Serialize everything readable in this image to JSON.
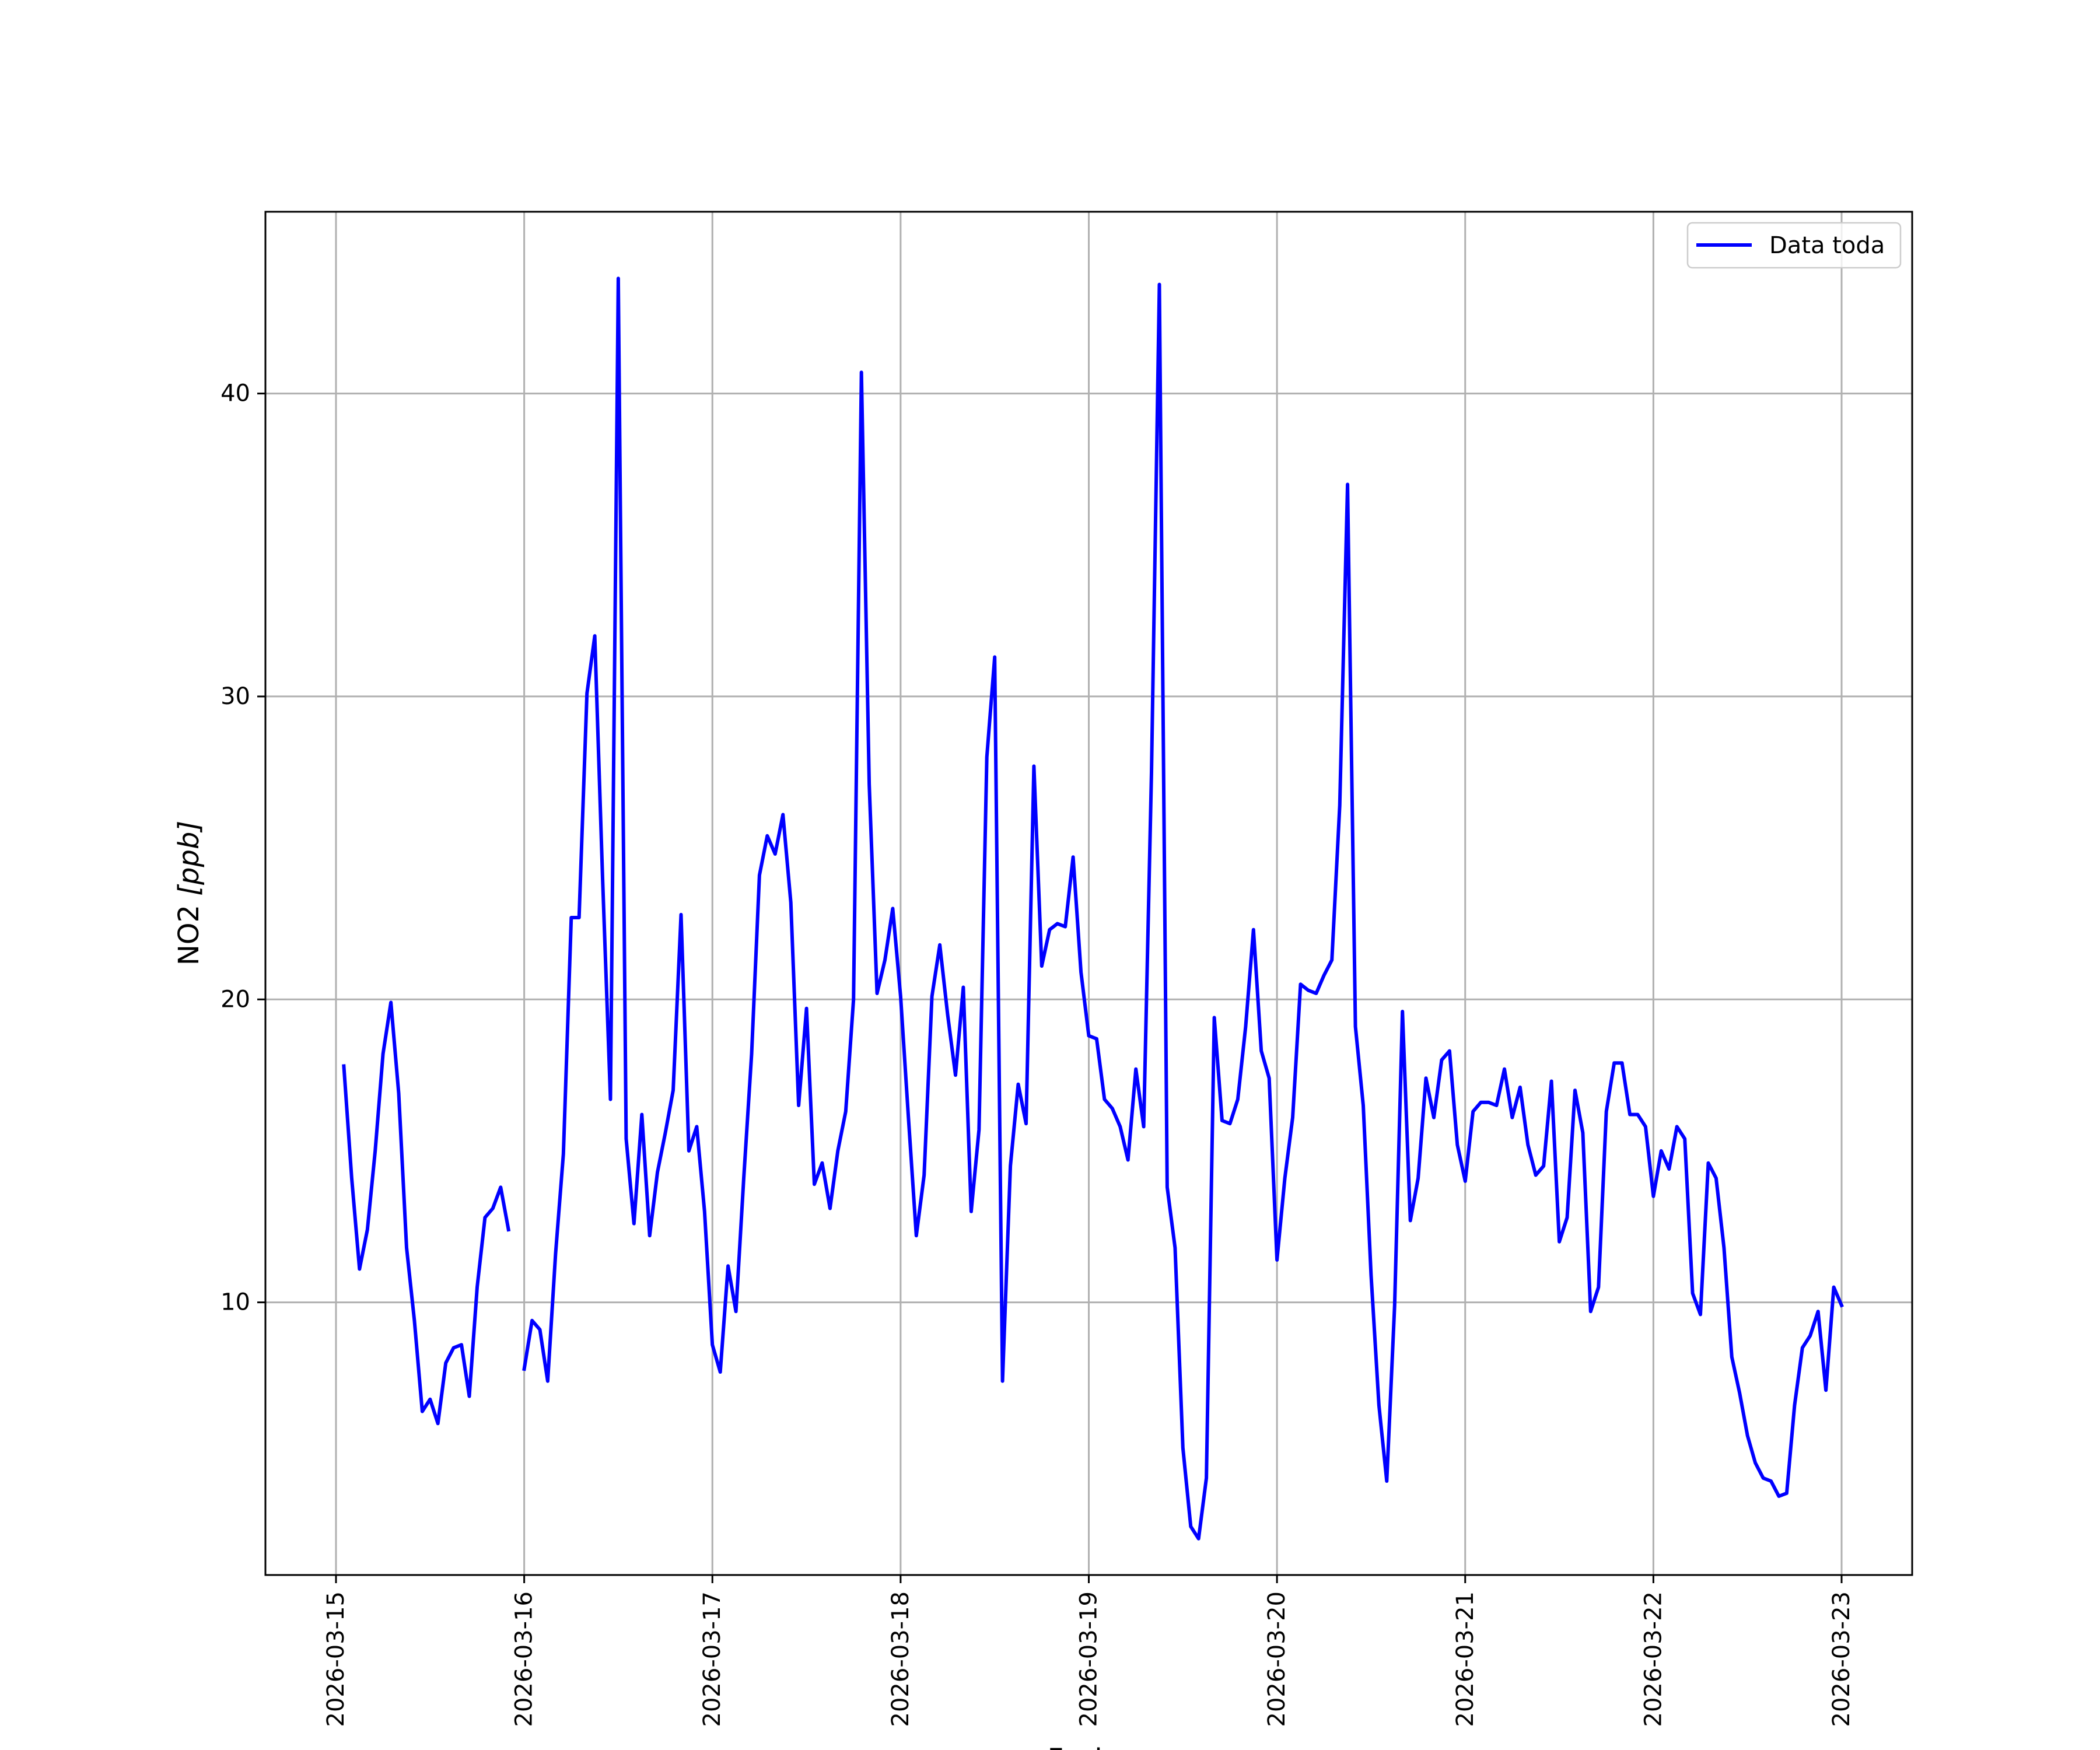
{
  "chart_data": {
    "type": "line",
    "title": "",
    "xlabel": "Fecha",
    "ylabel": "NO2 [ppb]",
    "ylabel_main": "NO2 ",
    "ylabel_unit": "[ppb]",
    "xlim": [
      "2026-03-14 15:00",
      "2026-03-23 09:00"
    ],
    "ylim": [
      1,
      46
    ],
    "xticks": [
      "2026-03-15",
      "2026-03-16",
      "2026-03-17",
      "2026-03-18",
      "2026-03-19",
      "2026-03-20",
      "2026-03-21",
      "2026-03-22",
      "2026-03-23"
    ],
    "yticks": [
      10,
      20,
      30,
      40
    ],
    "grid": true,
    "legend_position": "upper right",
    "series": [
      {
        "name": "Data toda",
        "color": "#0000ff",
        "x": [
          "2026-03-15 01:00",
          "2026-03-15 02:00",
          "2026-03-15 03:00",
          "2026-03-15 04:00",
          "2026-03-15 05:00",
          "2026-03-15 06:00",
          "2026-03-15 07:00",
          "2026-03-15 08:00",
          "2026-03-15 09:00",
          "2026-03-15 10:00",
          "2026-03-15 11:00",
          "2026-03-15 12:00",
          "2026-03-15 13:00",
          "2026-03-15 14:00",
          "2026-03-15 15:00",
          "2026-03-15 16:00",
          "2026-03-15 17:00",
          "2026-03-15 18:00",
          "2026-03-15 19:00",
          "2026-03-15 20:00",
          "2026-03-15 21:00",
          "2026-03-15 22:00",
          null,
          "2026-03-16 00:00",
          "2026-03-16 01:00",
          "2026-03-16 02:00",
          "2026-03-16 03:00",
          "2026-03-16 04:00",
          "2026-03-16 05:00",
          "2026-03-16 06:00",
          "2026-03-16 07:00",
          "2026-03-16 08:00",
          "2026-03-16 09:00",
          "2026-03-16 10:00",
          "2026-03-16 11:00",
          "2026-03-16 12:00",
          "2026-03-16 13:00",
          "2026-03-16 14:00",
          "2026-03-16 15:00",
          "2026-03-16 16:00",
          "2026-03-16 17:00",
          "2026-03-16 18:00",
          "2026-03-16 19:00",
          "2026-03-16 20:00",
          "2026-03-16 21:00",
          "2026-03-16 22:00",
          "2026-03-16 23:00",
          "2026-03-17 00:00",
          "2026-03-17 01:00",
          "2026-03-17 02:00",
          "2026-03-17 03:00",
          "2026-03-17 04:00",
          "2026-03-17 05:00",
          "2026-03-17 06:00",
          "2026-03-17 07:00",
          "2026-03-17 08:00",
          "2026-03-17 09:00",
          "2026-03-17 10:00",
          "2026-03-17 11:00",
          "2026-03-17 12:00",
          "2026-03-17 13:00",
          "2026-03-17 14:00",
          "2026-03-17 15:00",
          "2026-03-17 16:00",
          "2026-03-17 17:00",
          "2026-03-17 18:00",
          "2026-03-17 19:00",
          "2026-03-17 20:00",
          "2026-03-17 21:00",
          "2026-03-17 22:00",
          "2026-03-17 23:00",
          "2026-03-18 00:00",
          "2026-03-18 01:00",
          "2026-03-18 02:00",
          "2026-03-18 03:00",
          "2026-03-18 04:00",
          "2026-03-18 05:00",
          "2026-03-18 06:00",
          "2026-03-18 07:00",
          "2026-03-18 08:00",
          "2026-03-18 09:00",
          "2026-03-18 10:00",
          "2026-03-18 11:00",
          "2026-03-18 12:00",
          "2026-03-18 13:00",
          "2026-03-18 14:00",
          "2026-03-18 15:00",
          "2026-03-18 16:00",
          "2026-03-18 17:00",
          "2026-03-18 18:00",
          "2026-03-18 19:00",
          "2026-03-18 20:00",
          "2026-03-18 21:00",
          "2026-03-18 22:00",
          "2026-03-18 23:00",
          "2026-03-19 00:00",
          "2026-03-19 01:00",
          "2026-03-19 02:00",
          "2026-03-19 03:00",
          "2026-03-19 04:00",
          "2026-03-19 05:00",
          "2026-03-19 06:00",
          "2026-03-19 07:00",
          "2026-03-19 08:00",
          "2026-03-19 09:00",
          "2026-03-19 10:00",
          "2026-03-19 11:00",
          "2026-03-19 12:00",
          "2026-03-19 13:00",
          "2026-03-19 14:00",
          "2026-03-19 15:00",
          "2026-03-19 16:00",
          "2026-03-19 17:00",
          "2026-03-19 18:00",
          "2026-03-19 19:00",
          "2026-03-19 20:00",
          "2026-03-19 21:00",
          "2026-03-19 22:00",
          "2026-03-19 23:00",
          "2026-03-20 00:00",
          "2026-03-20 01:00",
          "2026-03-20 02:00",
          "2026-03-20 03:00",
          "2026-03-20 04:00",
          "2026-03-20 05:00",
          "2026-03-20 06:00",
          "2026-03-20 07:00",
          "2026-03-20 08:00",
          "2026-03-20 09:00",
          "2026-03-20 10:00",
          "2026-03-20 11:00",
          "2026-03-20 12:00",
          "2026-03-20 13:00",
          "2026-03-20 14:00",
          "2026-03-20 15:00",
          "2026-03-20 16:00",
          "2026-03-20 17:00",
          "2026-03-20 18:00",
          "2026-03-20 19:00",
          "2026-03-20 20:00",
          "2026-03-20 21:00",
          "2026-03-20 22:00",
          "2026-03-20 23:00",
          "2026-03-21 00:00",
          "2026-03-21 01:00",
          "2026-03-21 02:00",
          "2026-03-21 03:00",
          "2026-03-21 04:00",
          "2026-03-21 05:00",
          "2026-03-21 06:00",
          "2026-03-21 07:00",
          "2026-03-21 08:00",
          "2026-03-21 09:00",
          "2026-03-21 10:00",
          "2026-03-21 11:00",
          "2026-03-21 12:00",
          "2026-03-21 13:00",
          "2026-03-21 14:00",
          "2026-03-21 15:00",
          "2026-03-21 16:00",
          "2026-03-21 17:00",
          "2026-03-21 18:00",
          "2026-03-21 19:00",
          "2026-03-21 20:00",
          "2026-03-21 21:00",
          "2026-03-21 22:00",
          "2026-03-21 23:00",
          "2026-03-22 00:00",
          "2026-03-22 01:00",
          "2026-03-22 02:00",
          "2026-03-22 03:00",
          "2026-03-22 04:00",
          "2026-03-22 05:00",
          "2026-03-22 06:00",
          "2026-03-22 07:00",
          "2026-03-22 08:00",
          "2026-03-22 09:00",
          "2026-03-22 10:00",
          "2026-03-22 11:00",
          "2026-03-22 12:00",
          "2026-03-22 13:00",
          "2026-03-22 14:00",
          "2026-03-22 15:00",
          "2026-03-22 16:00",
          "2026-03-22 17:00",
          "2026-03-22 18:00",
          "2026-03-22 19:00",
          "2026-03-22 20:00",
          "2026-03-22 21:00",
          "2026-03-22 22:00",
          "2026-03-22 23:00",
          "2026-03-23 00:00"
        ],
        "values": [
          17.8,
          14.1,
          11.1,
          12.4,
          15.0,
          18.2,
          19.9,
          16.9,
          11.8,
          9.4,
          6.4,
          6.8,
          6.0,
          8.0,
          8.5,
          8.6,
          6.9,
          10.5,
          12.8,
          13.1,
          13.8,
          12.4,
          null,
          7.8,
          9.4,
          9.1,
          7.4,
          11.6,
          14.9,
          22.7,
          22.7,
          30.1,
          32.0,
          24.0,
          16.7,
          43.8,
          15.4,
          12.6,
          16.2,
          12.2,
          14.3,
          15.6,
          17.0,
          22.8,
          15.0,
          15.8,
          13.0,
          8.6,
          7.7,
          11.2,
          9.7,
          14.1,
          18.2,
          24.1,
          25.4,
          24.8,
          26.1,
          23.2,
          16.5,
          19.7,
          13.9,
          14.6,
          13.1,
          15.0,
          16.3,
          20.0,
          40.7,
          27.1,
          20.2,
          21.3,
          23.0,
          20.1,
          16.1,
          12.2,
          14.2,
          20.1,
          21.8,
          19.5,
          17.5,
          20.4,
          13.0,
          15.7,
          28.0,
          31.3,
          7.4,
          14.5,
          17.2,
          15.9,
          27.7,
          21.1,
          22.3,
          22.5,
          22.4,
          24.7,
          20.9,
          18.8,
          18.7,
          16.7,
          16.4,
          15.8,
          14.7,
          17.7,
          15.8,
          27.5,
          43.6,
          13.8,
          11.8,
          5.2,
          2.6,
          2.2,
          4.2,
          19.4,
          16.0,
          15.9,
          16.7,
          19.1,
          22.3,
          18.3,
          17.4,
          11.4,
          14.1,
          16.1,
          20.5,
          20.3,
          20.2,
          20.8,
          21.3,
          26.4,
          37.0,
          19.1,
          16.5,
          10.9,
          6.6,
          4.1,
          9.9,
          19.6,
          12.7,
          14.1,
          17.4,
          16.1,
          18.0,
          18.3,
          15.2,
          14.0,
          16.3,
          16.6,
          16.6,
          16.5,
          17.7,
          16.1,
          17.1,
          15.2,
          14.2,
          14.5,
          17.3,
          12.0,
          12.8,
          17.0,
          15.6,
          9.7,
          10.5,
          16.3,
          17.9,
          17.9,
          16.2,
          16.2,
          15.8,
          13.5,
          15.0,
          14.4,
          15.8,
          15.4,
          10.3,
          9.6,
          14.6,
          14.1,
          11.8,
          8.2,
          7.0,
          5.6,
          4.7,
          4.2,
          4.1,
          3.6,
          3.7,
          6.6,
          8.5,
          8.9,
          9.7,
          7.1,
          10.5,
          9.9
        ]
      }
    ]
  }
}
